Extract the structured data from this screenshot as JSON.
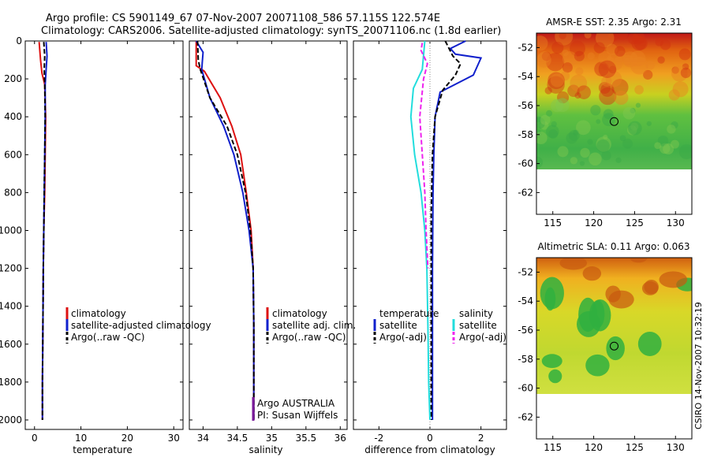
{
  "header": {
    "line1": "Argo profile: CS 5901149_67 07-Nov-2007 20071108_586 57.115S 122.574E",
    "line2": "Climatology: CARS2006. Satellite-adjusted climatology: synTS_20071106.nc (1.8d earlier)"
  },
  "side_credit": "CSIRO 14-Nov-2007 10:32:19",
  "colors": {
    "climatology": "#dd1111",
    "satellite": "#1020cc",
    "argo": "#000000",
    "sal_satellite": "#22dddd",
    "sal_argo": "#ee22ee",
    "pi": "#7a1a9a"
  },
  "chart_data": [
    {
      "id": "temperature",
      "type": "line",
      "xlabel": "temperature",
      "xlim": [
        -2,
        32
      ],
      "xticks": [
        0,
        10,
        20,
        30
      ],
      "ylim": [
        0,
        2050
      ],
      "yticks": [
        0,
        200,
        400,
        600,
        800,
        1000,
        1200,
        1400,
        1600,
        1800,
        2000
      ],
      "y_reversed": true,
      "legend": {
        "entries": [
          "climatology",
          "satellite-adjusted climatology",
          "Argo(..raw -QC)"
        ]
      },
      "series": [
        {
          "name": "climatology",
          "color_key": "climatology",
          "dash": "solid",
          "x": [
            1.0,
            1.3,
            1.6,
            2.2,
            2.4,
            2.3,
            2.2,
            2.0,
            1.9,
            1.8,
            1.7,
            1.7
          ],
          "y": [
            5,
            100,
            170,
            230,
            400,
            600,
            800,
            1000,
            1200,
            1500,
            1800,
            2000
          ]
        },
        {
          "name": "satellite-adjusted climatology",
          "color_key": "satellite",
          "dash": "solid",
          "x": [
            2.5,
            2.7,
            2.5,
            2.3,
            2.3,
            2.2,
            2.1,
            2.0,
            1.9,
            1.8,
            1.7,
            1.7
          ],
          "y": [
            5,
            80,
            150,
            230,
            400,
            600,
            800,
            1000,
            1200,
            1500,
            1800,
            2000
          ]
        },
        {
          "name": "Argo(..raw -QC)",
          "color_key": "argo",
          "dash": "dashed",
          "x": [
            2.0,
            2.2,
            2.1,
            2.2,
            2.3,
            2.2,
            2.1,
            2.0,
            1.9,
            1.8,
            1.7,
            1.7
          ],
          "y": [
            5,
            80,
            150,
            230,
            400,
            600,
            800,
            1000,
            1200,
            1500,
            1800,
            2000
          ]
        }
      ]
    },
    {
      "id": "salinity",
      "type": "line",
      "xlabel": "salinity",
      "xlim": [
        33.8,
        36.1
      ],
      "xticks": [
        34,
        34.5,
        35,
        35.5,
        36
      ],
      "ylim": [
        0,
        2050
      ],
      "y_reversed": true,
      "legend": {
        "entries": [
          "climatology",
          "satellite adj. clim.",
          "Argo(..raw -QC)"
        ]
      },
      "annotations": [
        "Argo AUSTRALIA",
        "PI: Susan Wijffels"
      ],
      "series": [
        {
          "name": "climatology",
          "color_key": "climatology",
          "dash": "solid",
          "x": [
            33.9,
            33.9,
            34.02,
            34.25,
            34.42,
            34.55,
            34.63,
            34.7,
            34.73,
            34.74,
            34.74,
            34.74
          ],
          "y": [
            0,
            130,
            160,
            300,
            450,
            600,
            800,
            1000,
            1200,
            1500,
            1800,
            2000
          ]
        },
        {
          "name": "satellite adj. clim.",
          "color_key": "satellite",
          "dash": "solid",
          "x": [
            33.9,
            34.0,
            33.98,
            34.1,
            34.3,
            34.45,
            34.58,
            34.67,
            34.73,
            34.74,
            34.74,
            34.74
          ],
          "y": [
            0,
            60,
            150,
            300,
            450,
            600,
            800,
            1000,
            1200,
            1500,
            1800,
            2000
          ]
        },
        {
          "name": "Argo(..raw -QC)",
          "color_key": "argo",
          "dash": "dashed",
          "x": [
            33.92,
            33.93,
            33.96,
            34.1,
            34.35,
            34.5,
            34.62,
            34.69,
            34.73,
            34.74,
            34.74,
            34.74
          ],
          "y": [
            0,
            100,
            150,
            300,
            450,
            600,
            800,
            1000,
            1200,
            1500,
            1800,
            2000
          ]
        }
      ]
    },
    {
      "id": "difference",
      "type": "line",
      "xlabel": "difference from climatology",
      "xlim": [
        -3,
        3
      ],
      "xticks": [
        -2,
        0,
        2
      ],
      "ylim": [
        0,
        2050
      ],
      "y_reversed": true,
      "legend": {
        "group_titles": [
          "temperature",
          "salinity"
        ],
        "entries": [
          "satellite",
          "Argo(-adj)",
          "satellite",
          "Argo(-adj)"
        ]
      },
      "series": [
        {
          "name": "temperature satellite",
          "color_key": "satellite",
          "dash": "solid",
          "x": [
            1.4,
            0.8,
            1.0,
            2.0,
            1.7,
            0.4,
            0.2,
            0.15,
            0.12,
            0.1,
            0.1,
            0.1,
            0.1
          ],
          "y": [
            0,
            40,
            70,
            90,
            180,
            270,
            400,
            600,
            800,
            1200,
            1500,
            1800,
            2000
          ]
        },
        {
          "name": "temperature Argo(-adj)",
          "color_key": "argo",
          "dash": "dashed",
          "x": [
            0.6,
            0.9,
            1.2,
            1.0,
            0.5,
            0.2,
            0.1,
            0.05,
            0.05,
            0.05,
            0.05
          ],
          "y": [
            0,
            80,
            120,
            180,
            260,
            400,
            600,
            900,
            1200,
            1600,
            2000
          ]
        },
        {
          "name": "salinity satellite",
          "color_key": "sal_satellite",
          "dash": "solid",
          "x": [
            -0.2,
            -0.3,
            -0.65,
            -0.75,
            -0.6,
            -0.35,
            -0.2,
            -0.12,
            -0.08,
            -0.05,
            0.0
          ],
          "y": [
            0,
            150,
            250,
            400,
            600,
            800,
            1000,
            1200,
            1500,
            1800,
            2000
          ]
        },
        {
          "name": "salinity Argo(-adj)",
          "color_key": "sal_argo",
          "dash": "dashed",
          "x": [
            -0.3,
            -0.35,
            -0.1,
            -0.25,
            -0.4,
            -0.3,
            -0.2,
            -0.15,
            -0.08
          ],
          "y": [
            10,
            50,
            120,
            200,
            400,
            600,
            800,
            1000,
            1200
          ]
        }
      ]
    },
    {
      "id": "amsre_sst",
      "type": "heatmap",
      "title": "AMSR-E SST: 2.35 Argo: 2.31",
      "xlim": [
        113,
        132
      ],
      "xticks": [
        115,
        120,
        125,
        130
      ],
      "ylim": [
        -63.5,
        -51
      ],
      "yticks": [
        -52,
        -54,
        -56,
        -58,
        -60,
        -62
      ],
      "data_ylim": [
        -60,
        -51
      ],
      "marker": {
        "x": 122.5,
        "y": -57.1
      }
    },
    {
      "id": "altimetric_sla",
      "type": "heatmap",
      "title": "Altimetric SLA: 0.11 Argo: 0.063",
      "xlim": [
        113,
        132
      ],
      "xticks": [
        115,
        120,
        125,
        130
      ],
      "ylim": [
        -63.5,
        -51
      ],
      "yticks": [
        -52,
        -54,
        -56,
        -58,
        -60,
        -62
      ],
      "data_ylim": [
        -60,
        -51
      ],
      "marker": {
        "x": 122.5,
        "y": -57.1
      }
    }
  ]
}
